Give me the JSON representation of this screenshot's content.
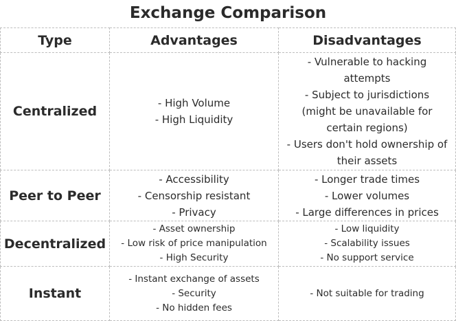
{
  "title": "Exchange Comparison",
  "headers": {
    "type": "Type",
    "advantages": "Advantages",
    "disadvantages": "Disadvantages"
  },
  "rows": [
    {
      "type": "Centralized",
      "advantages": [
        "- High Volume",
        "- High Liquidity"
      ],
      "disadvantages": [
        "- Vulnerable to hacking attempts",
        "- Subject to jurisdictions (might be unavailable for certain regions)",
        "- Users don't hold ownership of their assets"
      ]
    },
    {
      "type": "Peer to Peer",
      "advantages": [
        "- Accessibility",
        "- Censorship resistant",
        "- Privacy"
      ],
      "disadvantages": [
        "- Longer trade times",
        "- Lower volumes",
        "- Large differences in prices"
      ]
    },
    {
      "type": "Decentralized",
      "advantages": [
        "- Asset ownership",
        "- Low risk of price manipulation",
        "- High Security"
      ],
      "disadvantages": [
        "- Low liquidity",
        "- Scalability issues",
        "- No support service"
      ]
    },
    {
      "type": "Instant",
      "advantages": [
        "- Instant exchange of assets",
        "- Security",
        "- No hidden fees"
      ],
      "disadvantages": [
        "- Not suitable for trading"
      ]
    }
  ]
}
